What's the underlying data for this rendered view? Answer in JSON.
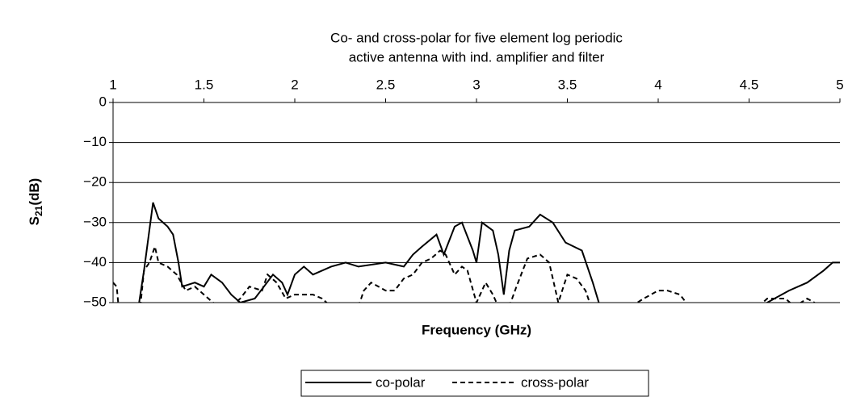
{
  "chart_data": {
    "type": "line",
    "title": [
      "Co- and cross-polar for five element log periodic",
      "active antenna with ind. amplifier and filter"
    ],
    "x_label": "Frequency (GHz)",
    "y_label": [
      "S",
      "21",
      "(dB)"
    ],
    "xlim": [
      1,
      5
    ],
    "xticks": [
      1,
      1.5,
      2,
      2.5,
      3,
      3.5,
      4,
      4.5,
      5
    ],
    "ylim": [
      -50,
      0
    ],
    "yticks": [
      0,
      {
        "value": -10,
        "label": "−10"
      },
      {
        "value": -20,
        "label": "−20"
      },
      {
        "value": -30,
        "label": "−30"
      },
      {
        "value": -40,
        "label": "−40"
      },
      {
        "value": -50,
        "label": "−50"
      }
    ],
    "grid": true,
    "legend": "bottom",
    "series": [
      {
        "name": "co-polar",
        "color": "#000000",
        "dash": "solid",
        "x": [
          1.14,
          1.17,
          1.22,
          1.25,
          1.3,
          1.33,
          1.36,
          1.38,
          1.45,
          1.5,
          1.54,
          1.6,
          1.65,
          1.7,
          1.78,
          1.83,
          1.88,
          1.93,
          1.96,
          2.0,
          2.05,
          2.1,
          2.2,
          2.28,
          2.35,
          2.5,
          2.6,
          2.65,
          2.7,
          2.78,
          2.82,
          2.88,
          2.92,
          2.98,
          3.0,
          3.03,
          3.09,
          3.12,
          3.15,
          3.18,
          3.21,
          3.29,
          3.35,
          3.42,
          3.49,
          3.58,
          3.64,
          3.68,
          4.0,
          4.56,
          4.64,
          4.72,
          4.82,
          4.91,
          4.96,
          5.0
        ],
        "values": [
          -51,
          -42,
          -25,
          -29,
          -31,
          -33,
          -40,
          -46,
          -45,
          -46,
          -43,
          -45,
          -48,
          -50,
          -49,
          -46,
          -43,
          -45,
          -48,
          -43,
          -41,
          -43,
          -41,
          -40,
          -41,
          -40,
          -41,
          -38,
          -36,
          -33,
          -38,
          -31,
          -30,
          -37,
          -40,
          -30,
          -32,
          -38,
          -48,
          -37,
          -32,
          -31,
          -28,
          -30,
          -35,
          -37,
          -45,
          -51,
          null,
          -51,
          -49,
          -47,
          -45,
          -42,
          -40,
          -40
        ]
      },
      {
        "name": "cross-polar",
        "color": "#000000",
        "dash": "dashed",
        "x": [
          1.0,
          1.02,
          1.03,
          1.1,
          1.15,
          1.17,
          1.2,
          1.23,
          1.25,
          1.3,
          1.35,
          1.4,
          1.45,
          1.5,
          1.55,
          1.6,
          1.62,
          1.65,
          1.7,
          1.75,
          1.82,
          1.85,
          1.9,
          1.95,
          2.0,
          2.1,
          2.15,
          2.2,
          2.3,
          2.35,
          2.38,
          2.42,
          2.5,
          2.55,
          2.6,
          2.65,
          2.7,
          2.75,
          2.8,
          2.83,
          2.88,
          2.92,
          2.95,
          3.0,
          3.05,
          3.09,
          3.12,
          3.15,
          3.18,
          3.22,
          3.28,
          3.35,
          3.4,
          3.45,
          3.5,
          3.55,
          3.6,
          3.63,
          3.7,
          3.85,
          3.92,
          4.0,
          4.05,
          4.12,
          4.17,
          4.3,
          4.55,
          4.6,
          4.7,
          4.75,
          4.82,
          4.86,
          4.88
        ],
        "values": [
          -45,
          -46,
          -51,
          null,
          -51,
          -42,
          -40,
          -36,
          -40,
          -41,
          -43,
          -47,
          -46,
          -48,
          -50,
          -51,
          null,
          -51,
          -49,
          -46,
          -47,
          -43,
          -45,
          -49,
          -48,
          -48,
          -49,
          -51,
          null,
          -51,
          -47,
          -45,
          -47,
          -47,
          -44,
          -43,
          -40,
          -39,
          -37,
          -38,
          -43,
          -41,
          -42,
          -50,
          -45,
          -48,
          -51,
          null,
          -51,
          -46,
          -39,
          -38,
          -40,
          -50,
          -43,
          -44,
          -47,
          -51,
          null,
          -51,
          -49,
          -47,
          -47,
          -48,
          -51,
          null,
          -51,
          -49,
          -49,
          -51,
          -49,
          -50,
          -51
        ]
      }
    ]
  }
}
